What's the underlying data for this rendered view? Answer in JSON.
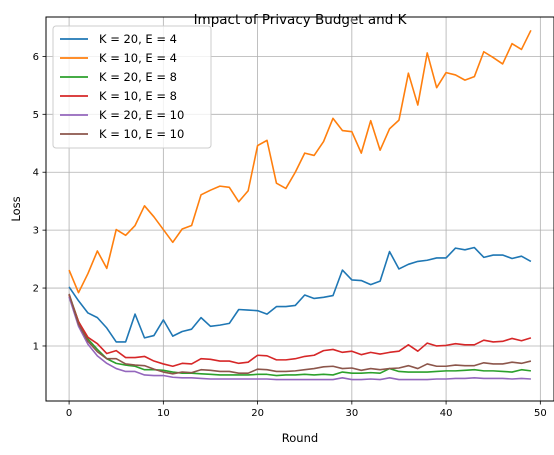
{
  "chart_data": {
    "type": "line",
    "title": "Impact of Privacy Budget and K",
    "xlabel": "Round",
    "ylabel": "Loss",
    "xlim": [
      -2.45,
      51.45
    ],
    "ylim": [
      0.05,
      6.68
    ],
    "xticks": [
      0,
      10,
      20,
      30,
      40,
      50
    ],
    "yticks": [
      1,
      2,
      3,
      4,
      5,
      6
    ],
    "grid": true,
    "legend_position": "upper-left",
    "x": [
      0,
      1,
      2,
      3,
      4,
      5,
      6,
      7,
      8,
      9,
      10,
      11,
      12,
      13,
      14,
      15,
      16,
      17,
      18,
      19,
      20,
      21,
      22,
      23,
      24,
      25,
      26,
      27,
      28,
      29,
      30,
      31,
      32,
      33,
      34,
      35,
      36,
      37,
      38,
      39,
      40,
      41,
      42,
      43,
      44,
      45,
      46,
      47,
      48,
      49
    ],
    "series": [
      {
        "name": "K = 20, E = 4",
        "color": "#1f77b4",
        "values": [
          2.02,
          1.78,
          1.57,
          1.49,
          1.31,
          1.07,
          1.07,
          1.55,
          1.14,
          1.18,
          1.45,
          1.17,
          1.25,
          1.29,
          1.49,
          1.34,
          1.36,
          1.39,
          1.63,
          1.62,
          1.61,
          1.55,
          1.68,
          1.68,
          1.7,
          1.88,
          1.82,
          1.84,
          1.87,
          2.31,
          2.14,
          2.13,
          2.06,
          2.12,
          2.63,
          2.33,
          2.41,
          2.46,
          2.48,
          2.52,
          2.52,
          2.69,
          2.66,
          2.7,
          2.53,
          2.57,
          2.57,
          2.51,
          2.55,
          2.46
        ]
      },
      {
        "name": "K = 10, E = 4",
        "color": "#ff7f0e",
        "values": [
          2.31,
          1.92,
          2.25,
          2.64,
          2.34,
          3.01,
          2.91,
          3.08,
          3.42,
          3.23,
          3.01,
          2.79,
          3.02,
          3.08,
          3.61,
          3.69,
          3.76,
          3.74,
          3.49,
          3.68,
          4.46,
          4.55,
          3.81,
          3.72,
          4.0,
          4.33,
          4.29,
          4.53,
          4.93,
          4.72,
          4.7,
          4.33,
          4.89,
          4.38,
          4.75,
          4.9,
          5.71,
          5.16,
          6.06,
          5.46,
          5.72,
          5.68,
          5.59,
          5.65,
          6.08,
          5.98,
          5.87,
          6.22,
          6.12,
          6.45
        ]
      },
      {
        "name": "K = 20, E = 8",
        "color": "#2ca02c",
        "values": [
          1.89,
          1.42,
          1.12,
          0.94,
          0.78,
          0.7,
          0.67,
          0.65,
          0.59,
          0.59,
          0.58,
          0.55,
          0.53,
          0.53,
          0.52,
          0.51,
          0.5,
          0.5,
          0.5,
          0.5,
          0.51,
          0.51,
          0.49,
          0.5,
          0.5,
          0.51,
          0.5,
          0.51,
          0.5,
          0.55,
          0.53,
          0.53,
          0.54,
          0.53,
          0.61,
          0.56,
          0.55,
          0.55,
          0.55,
          0.56,
          0.57,
          0.57,
          0.58,
          0.59,
          0.57,
          0.57,
          0.56,
          0.55,
          0.59,
          0.57
        ]
      },
      {
        "name": "K = 10, E = 8",
        "color": "#d62728",
        "values": [
          1.88,
          1.42,
          1.15,
          1.04,
          0.87,
          0.92,
          0.8,
          0.8,
          0.82,
          0.74,
          0.69,
          0.65,
          0.7,
          0.69,
          0.78,
          0.77,
          0.74,
          0.74,
          0.7,
          0.72,
          0.84,
          0.83,
          0.76,
          0.76,
          0.78,
          0.82,
          0.84,
          0.92,
          0.94,
          0.89,
          0.91,
          0.85,
          0.89,
          0.86,
          0.89,
          0.91,
          1.02,
          0.91,
          1.05,
          1.0,
          1.01,
          1.04,
          1.02,
          1.02,
          1.1,
          1.07,
          1.08,
          1.13,
          1.09,
          1.14
        ]
      },
      {
        "name": "K = 20, E = 10",
        "color": "#9467bd",
        "values": [
          1.85,
          1.34,
          1.03,
          0.83,
          0.7,
          0.61,
          0.56,
          0.56,
          0.5,
          0.49,
          0.49,
          0.46,
          0.45,
          0.45,
          0.44,
          0.43,
          0.43,
          0.43,
          0.43,
          0.43,
          0.43,
          0.43,
          0.42,
          0.42,
          0.42,
          0.42,
          0.42,
          0.42,
          0.42,
          0.45,
          0.42,
          0.42,
          0.43,
          0.42,
          0.45,
          0.42,
          0.42,
          0.42,
          0.42,
          0.43,
          0.43,
          0.44,
          0.44,
          0.45,
          0.44,
          0.44,
          0.44,
          0.43,
          0.44,
          0.43
        ]
      },
      {
        "name": "K = 10, E = 10",
        "color": "#8c564b",
        "values": [
          1.9,
          1.38,
          1.08,
          0.9,
          0.78,
          0.78,
          0.69,
          0.67,
          0.66,
          0.6,
          0.55,
          0.52,
          0.55,
          0.54,
          0.59,
          0.58,
          0.56,
          0.56,
          0.53,
          0.53,
          0.6,
          0.59,
          0.56,
          0.56,
          0.57,
          0.59,
          0.61,
          0.64,
          0.65,
          0.61,
          0.62,
          0.58,
          0.61,
          0.59,
          0.61,
          0.62,
          0.66,
          0.61,
          0.69,
          0.65,
          0.65,
          0.67,
          0.66,
          0.66,
          0.71,
          0.69,
          0.69,
          0.72,
          0.7,
          0.74
        ]
      }
    ]
  }
}
